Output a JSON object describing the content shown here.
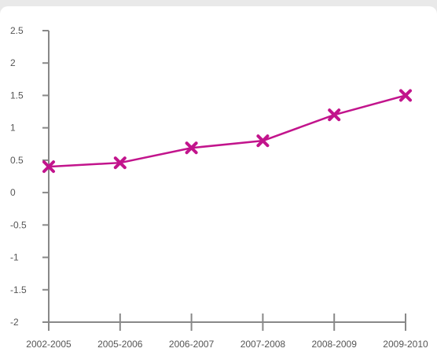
{
  "chart_data": {
    "type": "line",
    "title": "",
    "xlabel": "",
    "ylabel": "",
    "categories": [
      "2002-2005",
      "2005-2006",
      "2006-2007",
      "2007-2008",
      "2008-2009",
      "2009-2010"
    ],
    "series": [
      {
        "values": [
          0.4,
          0.46,
          0.69,
          0.8,
          1.2,
          1.5
        ],
        "color": "#c2148c",
        "marker": "x"
      }
    ],
    "ylim": [
      -2,
      2.5
    ],
    "yticks": [
      "2.5",
      "2",
      "1.5",
      "1",
      "0.5",
      "0",
      "-0.5",
      "-1",
      "-1.5",
      "-2"
    ],
    "grid": false,
    "axis_color": "#888888"
  }
}
